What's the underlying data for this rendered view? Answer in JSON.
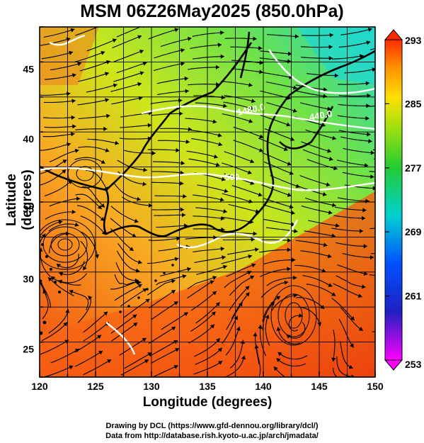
{
  "title": "MSM 06Z26May2025 (850.0hPa)",
  "map": {
    "lon_range": [
      120,
      150
    ],
    "lat_range": [
      23,
      48
    ],
    "x_ticks": [
      "120",
      "125",
      "130",
      "135",
      "140",
      "145",
      "150"
    ],
    "y_ticks": [
      "25",
      "30",
      "35",
      "40",
      "45"
    ],
    "xlabel": "Longitude (degrees)",
    "ylabel": "Latitude  (degrees)",
    "grid": true,
    "contour_labels": [
      "1480.0",
      "440.0",
      "500"
    ],
    "field": "temperature",
    "wind": "streamlines"
  },
  "colorbar": {
    "ticks": [
      "293",
      "285",
      "277",
      "269",
      "261",
      "253"
    ],
    "min": 253,
    "max": 293,
    "colors": [
      "#ff00ff",
      "#0000ff",
      "#00ffff",
      "#33ff33",
      "#ffff00",
      "#ff9900",
      "#ff3300"
    ]
  },
  "credits": {
    "line1": "Drawing by DCL (https://www.gfd-dennou.org/library/dcl/)",
    "line2": "Data from http://database.rish.kyoto-u.ac.jp/arch/jmadata/"
  }
}
